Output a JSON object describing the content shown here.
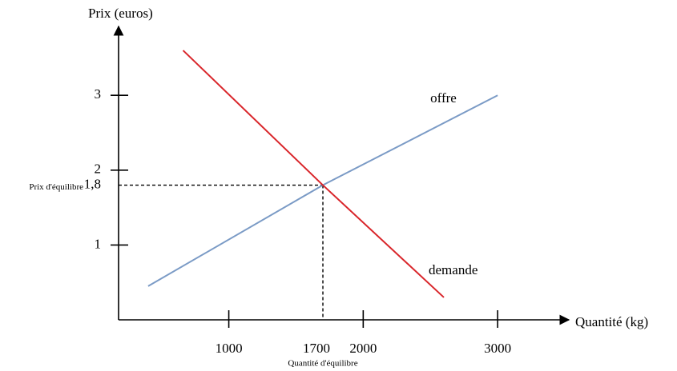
{
  "chart_data": {
    "type": "line",
    "x_label": "Quantité (kg)",
    "y_label": "Prix (euros)",
    "xlim": [
      180,
      3500
    ],
    "ylim": [
      0,
      3.9
    ],
    "xticks": [
      1000,
      2000,
      3000
    ],
    "yticks": [
      1,
      2,
      3
    ],
    "series": [
      {
        "name": "offre",
        "color": "#7b9bc6",
        "x": [
          400,
          1700,
          3000
        ],
        "values": [
          0.45,
          1.8,
          3.0
        ]
      },
      {
        "name": "demande",
        "color": "#d9262b",
        "x": [
          660,
          1700,
          2600
        ],
        "values": [
          3.6,
          1.8,
          0.3
        ]
      }
    ],
    "guides": {
      "x": 1700,
      "y": {
        "value": 1.8,
        "label": "1,8"
      },
      "x_label": "Quantité d'équilibre",
      "y_label": "Prix d'équilibre"
    }
  }
}
